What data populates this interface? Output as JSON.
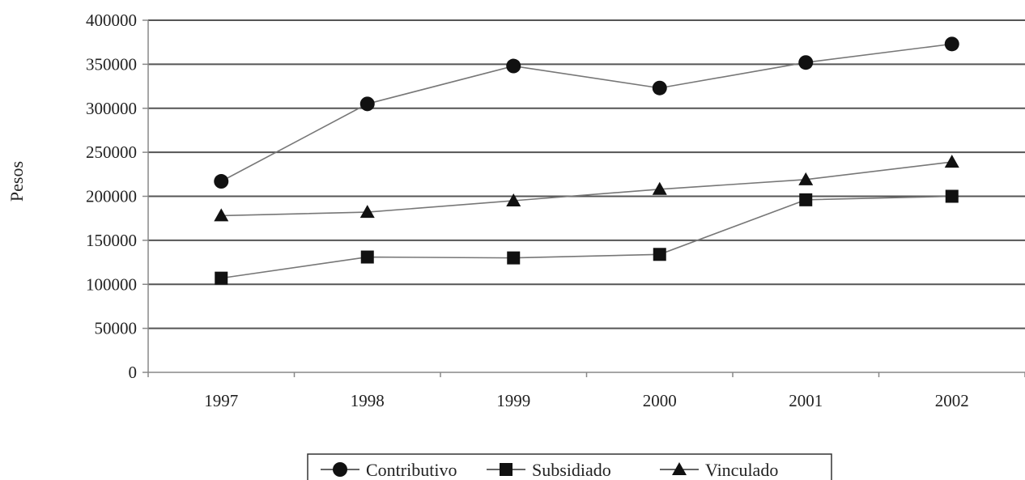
{
  "chart_data": {
    "type": "line",
    "title": "",
    "xlabel": "",
    "ylabel": "Pesos",
    "categories": [
      "1997",
      "1998",
      "1999",
      "2000",
      "2001",
      "2002"
    ],
    "ylim": [
      0,
      400000
    ],
    "yticks": [
      "0",
      "50000",
      "100000",
      "150000",
      "200000",
      "250000",
      "300000",
      "350000",
      "400000"
    ],
    "grid": true,
    "legend_position": "bottom",
    "series": [
      {
        "name": "Contributivo",
        "marker": "circle",
        "values": [
          217000,
          305000,
          348000,
          323000,
          352000,
          373000
        ]
      },
      {
        "name": "Subsidiado",
        "marker": "square",
        "values": [
          107000,
          131000,
          130000,
          134000,
          196000,
          200000
        ]
      },
      {
        "name": "Vinculado",
        "marker": "triangle",
        "values": [
          178000,
          182000,
          195000,
          208000,
          219000,
          239000
        ]
      }
    ],
    "colors": {
      "line": "#777777",
      "marker": "#111111",
      "grid": "#555555",
      "axis": "#888888"
    }
  }
}
